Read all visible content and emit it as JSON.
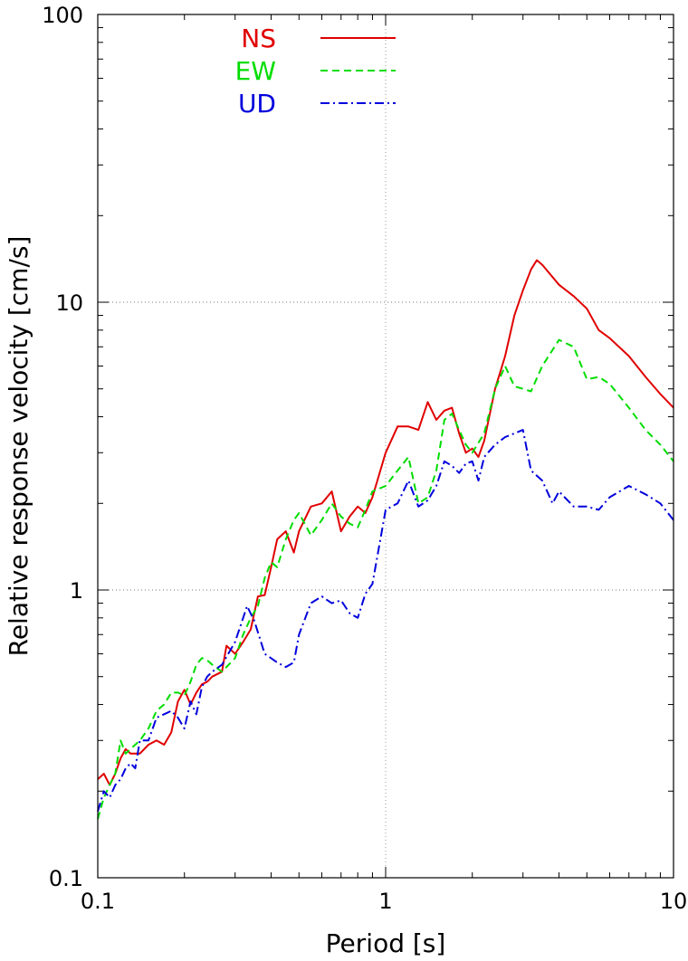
{
  "chart_data": {
    "type": "line",
    "xlabel": "Period [s]",
    "ylabel": "Relative response velocity [cm/s]",
    "x_scale": "log",
    "y_scale": "log",
    "xlim": [
      0.1,
      10
    ],
    "ylim": [
      0.1,
      100
    ],
    "x_ticks": [
      "0.1",
      "1",
      "10"
    ],
    "y_ticks": [
      "0.1",
      "1",
      "10",
      "100"
    ],
    "grid": "dotted gridlines at decades (x = 1; y = 1, 10)",
    "legend_position": "top-center",
    "series": [
      {
        "name": "NS",
        "color": "#e00000",
        "dash": "solid",
        "points": [
          [
            0.1,
            0.22
          ],
          [
            0.105,
            0.23
          ],
          [
            0.11,
            0.21
          ],
          [
            0.115,
            0.23
          ],
          [
            0.12,
            0.26
          ],
          [
            0.125,
            0.28
          ],
          [
            0.13,
            0.27
          ],
          [
            0.135,
            0.27
          ],
          [
            0.14,
            0.27
          ],
          [
            0.15,
            0.29
          ],
          [
            0.16,
            0.3
          ],
          [
            0.17,
            0.29
          ],
          [
            0.18,
            0.32
          ],
          [
            0.19,
            0.41
          ],
          [
            0.2,
            0.45
          ],
          [
            0.21,
            0.4
          ],
          [
            0.22,
            0.44
          ],
          [
            0.23,
            0.47
          ],
          [
            0.24,
            0.48
          ],
          [
            0.25,
            0.5
          ],
          [
            0.27,
            0.52
          ],
          [
            0.28,
            0.64
          ],
          [
            0.3,
            0.6
          ],
          [
            0.32,
            0.66
          ],
          [
            0.34,
            0.73
          ],
          [
            0.36,
            0.95
          ],
          [
            0.38,
            0.96
          ],
          [
            0.4,
            1.2
          ],
          [
            0.42,
            1.5
          ],
          [
            0.45,
            1.6
          ],
          [
            0.48,
            1.35
          ],
          [
            0.5,
            1.6
          ],
          [
            0.55,
            1.95
          ],
          [
            0.6,
            2.0
          ],
          [
            0.65,
            2.2
          ],
          [
            0.7,
            1.6
          ],
          [
            0.75,
            1.8
          ],
          [
            0.8,
            1.95
          ],
          [
            0.85,
            1.85
          ],
          [
            0.9,
            2.1
          ],
          [
            1.0,
            3.0
          ],
          [
            1.1,
            3.7
          ],
          [
            1.2,
            3.7
          ],
          [
            1.3,
            3.6
          ],
          [
            1.4,
            4.5
          ],
          [
            1.5,
            3.9
          ],
          [
            1.6,
            4.2
          ],
          [
            1.7,
            4.3
          ],
          [
            1.8,
            3.5
          ],
          [
            1.9,
            3.0
          ],
          [
            2.0,
            3.1
          ],
          [
            2.1,
            2.9
          ],
          [
            2.2,
            3.3
          ],
          [
            2.4,
            5.0
          ],
          [
            2.6,
            6.5
          ],
          [
            2.8,
            9.0
          ],
          [
            3.0,
            11.0
          ],
          [
            3.2,
            13.0
          ],
          [
            3.35,
            14.0
          ],
          [
            3.5,
            13.5
          ],
          [
            4.0,
            11.5
          ],
          [
            4.5,
            10.5
          ],
          [
            5.0,
            9.5
          ],
          [
            5.5,
            8.0
          ],
          [
            6.0,
            7.5
          ],
          [
            7.0,
            6.5
          ],
          [
            8.0,
            5.5
          ],
          [
            9.0,
            4.8
          ],
          [
            10.0,
            4.3
          ]
        ]
      },
      {
        "name": "EW",
        "color": "#00dd00",
        "dash": "dashed",
        "points": [
          [
            0.1,
            0.16
          ],
          [
            0.105,
            0.19
          ],
          [
            0.11,
            0.21
          ],
          [
            0.115,
            0.23
          ],
          [
            0.12,
            0.3
          ],
          [
            0.125,
            0.27
          ],
          [
            0.13,
            0.28
          ],
          [
            0.135,
            0.29
          ],
          [
            0.14,
            0.3
          ],
          [
            0.15,
            0.33
          ],
          [
            0.16,
            0.38
          ],
          [
            0.17,
            0.4
          ],
          [
            0.18,
            0.44
          ],
          [
            0.19,
            0.44
          ],
          [
            0.2,
            0.43
          ],
          [
            0.21,
            0.48
          ],
          [
            0.22,
            0.55
          ],
          [
            0.23,
            0.58
          ],
          [
            0.24,
            0.57
          ],
          [
            0.25,
            0.55
          ],
          [
            0.27,
            0.52
          ],
          [
            0.3,
            0.58
          ],
          [
            0.32,
            0.7
          ],
          [
            0.34,
            0.8
          ],
          [
            0.36,
            0.88
          ],
          [
            0.38,
            1.1
          ],
          [
            0.4,
            1.25
          ],
          [
            0.42,
            1.2
          ],
          [
            0.45,
            1.5
          ],
          [
            0.48,
            1.75
          ],
          [
            0.5,
            1.85
          ],
          [
            0.55,
            1.55
          ],
          [
            0.6,
            1.75
          ],
          [
            0.65,
            2.0
          ],
          [
            0.7,
            1.8
          ],
          [
            0.75,
            1.7
          ],
          [
            0.8,
            1.65
          ],
          [
            0.85,
            1.9
          ],
          [
            0.9,
            2.2
          ],
          [
            1.0,
            2.3
          ],
          [
            1.1,
            2.6
          ],
          [
            1.2,
            2.9
          ],
          [
            1.3,
            2.0
          ],
          [
            1.4,
            2.1
          ],
          [
            1.5,
            2.6
          ],
          [
            1.6,
            3.9
          ],
          [
            1.7,
            4.1
          ],
          [
            1.8,
            3.6
          ],
          [
            1.9,
            3.2
          ],
          [
            2.0,
            3.0
          ],
          [
            2.2,
            3.5
          ],
          [
            2.4,
            5.0
          ],
          [
            2.6,
            6.0
          ],
          [
            2.8,
            5.1
          ],
          [
            3.0,
            5.0
          ],
          [
            3.2,
            4.9
          ],
          [
            3.5,
            6.0
          ],
          [
            4.0,
            7.4
          ],
          [
            4.5,
            7.0
          ],
          [
            5.0,
            5.4
          ],
          [
            5.5,
            5.5
          ],
          [
            6.0,
            5.2
          ],
          [
            7.0,
            4.3
          ],
          [
            8.0,
            3.6
          ],
          [
            9.0,
            3.2
          ],
          [
            10.0,
            2.8
          ]
        ]
      },
      {
        "name": "UD",
        "color": "#0000dd",
        "dash": "dash-dot",
        "points": [
          [
            0.1,
            0.17
          ],
          [
            0.105,
            0.2
          ],
          [
            0.11,
            0.19
          ],
          [
            0.115,
            0.21
          ],
          [
            0.12,
            0.22
          ],
          [
            0.125,
            0.24
          ],
          [
            0.13,
            0.25
          ],
          [
            0.135,
            0.24
          ],
          [
            0.14,
            0.3
          ],
          [
            0.15,
            0.3
          ],
          [
            0.16,
            0.36
          ],
          [
            0.17,
            0.37
          ],
          [
            0.18,
            0.38
          ],
          [
            0.19,
            0.36
          ],
          [
            0.2,
            0.33
          ],
          [
            0.21,
            0.41
          ],
          [
            0.22,
            0.37
          ],
          [
            0.23,
            0.46
          ],
          [
            0.24,
            0.5
          ],
          [
            0.25,
            0.52
          ],
          [
            0.27,
            0.55
          ],
          [
            0.3,
            0.66
          ],
          [
            0.32,
            0.8
          ],
          [
            0.33,
            0.88
          ],
          [
            0.35,
            0.78
          ],
          [
            0.38,
            0.6
          ],
          [
            0.42,
            0.56
          ],
          [
            0.45,
            0.54
          ],
          [
            0.48,
            0.56
          ],
          [
            0.5,
            0.7
          ],
          [
            0.55,
            0.9
          ],
          [
            0.6,
            0.95
          ],
          [
            0.65,
            0.9
          ],
          [
            0.7,
            0.92
          ],
          [
            0.75,
            0.83
          ],
          [
            0.8,
            0.8
          ],
          [
            0.85,
            0.97
          ],
          [
            0.9,
            1.05
          ],
          [
            1.0,
            1.9
          ],
          [
            1.1,
            2.0
          ],
          [
            1.2,
            2.4
          ],
          [
            1.3,
            1.95
          ],
          [
            1.4,
            2.05
          ],
          [
            1.5,
            2.3
          ],
          [
            1.6,
            2.8
          ],
          [
            1.7,
            2.7
          ],
          [
            1.8,
            2.55
          ],
          [
            1.9,
            2.75
          ],
          [
            2.0,
            2.8
          ],
          [
            2.1,
            2.4
          ],
          [
            2.2,
            2.9
          ],
          [
            2.4,
            3.2
          ],
          [
            2.6,
            3.4
          ],
          [
            2.8,
            3.5
          ],
          [
            3.0,
            3.6
          ],
          [
            3.2,
            2.6
          ],
          [
            3.5,
            2.4
          ],
          [
            3.8,
            2.0
          ],
          [
            4.0,
            2.2
          ],
          [
            4.5,
            1.95
          ],
          [
            5.0,
            1.95
          ],
          [
            5.5,
            1.9
          ],
          [
            6.0,
            2.1
          ],
          [
            7.0,
            2.3
          ],
          [
            8.0,
            2.15
          ],
          [
            9.0,
            2.0
          ],
          [
            10.0,
            1.75
          ]
        ]
      }
    ]
  }
}
